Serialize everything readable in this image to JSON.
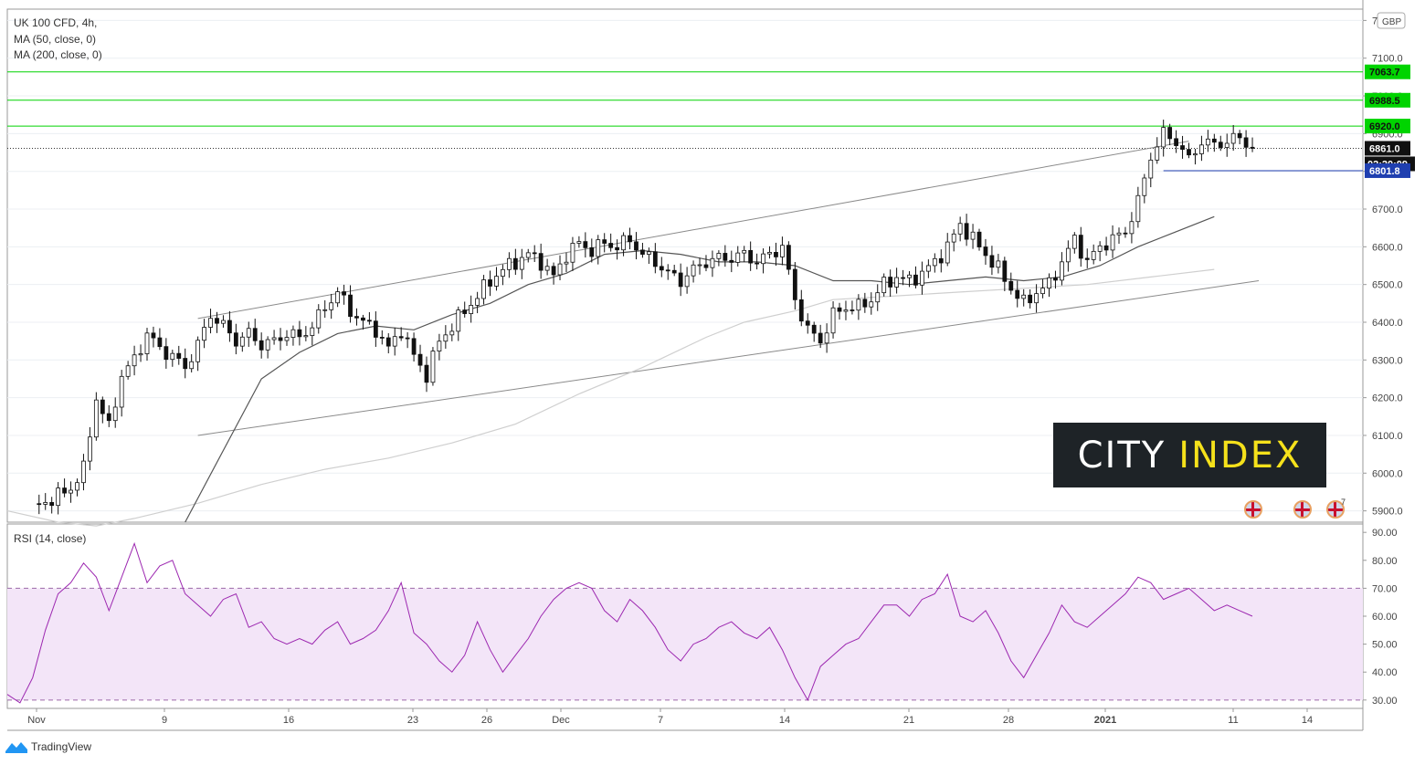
{
  "legend": {
    "symbol": "UK 100 CFD, 4h,",
    "ma50": "MA (50, close, 0)",
    "ma200": "MA (200, close, 0)",
    "rsi": "RSI (14, close)"
  },
  "currency_badge": "GBP",
  "price_ticks": [
    "7200.0",
    "7100.0",
    "7000.0",
    "6900.0",
    "6800.0",
    "6700.0",
    "6600.0",
    "6500.0",
    "6400.0",
    "6300.0",
    "6200.0",
    "6100.0",
    "6000.0",
    "5900.0"
  ],
  "rsi_ticks": [
    "90.00",
    "80.00",
    "70.00",
    "60.00",
    "50.00",
    "40.00",
    "30.00"
  ],
  "time_labels": [
    "Nov",
    "9",
    "16",
    "23",
    "26",
    "Dec",
    "7",
    "14",
    "21",
    "28",
    "2021",
    "11",
    "14"
  ],
  "markers": {
    "level_7063": "7063.7",
    "level_6988": "6988.5",
    "level_6920": "6920.0",
    "last_price": "6861.0",
    "countdown": "02:20:09",
    "level_6801": "6801.8"
  },
  "logo": {
    "city": "CITY",
    "index": "INDEX"
  },
  "flag_count": "7",
  "tradingview": "TradingView",
  "colors": {
    "resistance": "#00d400",
    "support_blue": "#1f3fb0",
    "rsi_line": "#9c27b0",
    "rsi_band": "#f3e5f8"
  },
  "chart_data": {
    "type": "candlestick",
    "title": "UK 100 CFD, 4h",
    "xlabel": "",
    "ylabel": "",
    "ylim": [
      5870,
      7230
    ],
    "rsi_ylim": [
      27,
      93
    ],
    "horizontal_levels": [
      7063.7,
      6988.5,
      6920.0,
      6801.8
    ],
    "last_price": 6861.0,
    "x_ticks": [
      "Nov",
      "9",
      "16",
      "23",
      "26",
      "Dec",
      "7",
      "14",
      "21",
      "28",
      "2021",
      "11",
      "14"
    ],
    "price_path": [
      [
        0,
        5820
      ],
      [
        2,
        5880
      ],
      [
        5,
        5915
      ],
      [
        8,
        5940
      ],
      [
        10,
        5960
      ],
      [
        12,
        6010
      ],
      [
        14,
        6200
      ],
      [
        16,
        6120
      ],
      [
        18,
        6260
      ],
      [
        20,
        6300
      ],
      [
        22,
        6370
      ],
      [
        24,
        6330
      ],
      [
        26,
        6310
      ],
      [
        28,
        6280
      ],
      [
        30,
        6340
      ],
      [
        32,
        6420
      ],
      [
        34,
        6390
      ],
      [
        36,
        6350
      ],
      [
        38,
        6370
      ],
      [
        40,
        6340
      ],
      [
        42,
        6350
      ],
      [
        44,
        6370
      ],
      [
        46,
        6360
      ],
      [
        48,
        6390
      ],
      [
        50,
        6440
      ],
      [
        52,
        6480
      ],
      [
        54,
        6430
      ],
      [
        56,
        6400
      ],
      [
        58,
        6380
      ],
      [
        60,
        6330
      ],
      [
        62,
        6380
      ],
      [
        64,
        6310
      ],
      [
        66,
        6260
      ],
      [
        68,
        6350
      ],
      [
        70,
        6390
      ],
      [
        72,
        6430
      ],
      [
        74,
        6470
      ],
      [
        76,
        6510
      ],
      [
        78,
        6540
      ],
      [
        80,
        6560
      ],
      [
        82,
        6580
      ],
      [
        84,
        6560
      ],
      [
        86,
        6520
      ],
      [
        88,
        6580
      ],
      [
        90,
        6610
      ],
      [
        92,
        6590
      ],
      [
        94,
        6610
      ],
      [
        96,
        6600
      ],
      [
        98,
        6620
      ],
      [
        100,
        6580
      ],
      [
        102,
        6560
      ],
      [
        104,
        6530
      ],
      [
        106,
        6510
      ],
      [
        108,
        6540
      ],
      [
        110,
        6560
      ],
      [
        112,
        6570
      ],
      [
        114,
        6570
      ],
      [
        116,
        6580
      ],
      [
        118,
        6560
      ],
      [
        120,
        6580
      ],
      [
        122,
        6600
      ],
      [
        124,
        6460
      ],
      [
        126,
        6380
      ],
      [
        128,
        6350
      ],
      [
        130,
        6420
      ],
      [
        132,
        6440
      ],
      [
        134,
        6440
      ],
      [
        136,
        6460
      ],
      [
        138,
        6500
      ],
      [
        140,
        6520
      ],
      [
        142,
        6510
      ],
      [
        144,
        6530
      ],
      [
        146,
        6560
      ],
      [
        148,
        6600
      ],
      [
        150,
        6660
      ],
      [
        152,
        6620
      ],
      [
        154,
        6580
      ],
      [
        156,
        6540
      ],
      [
        158,
        6490
      ],
      [
        160,
        6450
      ],
      [
        162,
        6480
      ],
      [
        164,
        6500
      ],
      [
        166,
        6560
      ],
      [
        168,
        6620
      ],
      [
        170,
        6560
      ],
      [
        172,
        6600
      ],
      [
        174,
        6620
      ],
      [
        176,
        6640
      ],
      [
        178,
        6720
      ],
      [
        180,
        6840
      ],
      [
        182,
        6900
      ],
      [
        184,
        6880
      ],
      [
        186,
        6830
      ],
      [
        188,
        6880
      ],
      [
        190,
        6870
      ],
      [
        192,
        6880
      ],
      [
        194,
        6890
      ],
      [
        196,
        6861
      ]
    ],
    "ma50_path": [
      [
        28,
        5870
      ],
      [
        34,
        6060
      ],
      [
        40,
        6250
      ],
      [
        46,
        6320
      ],
      [
        52,
        6370
      ],
      [
        58,
        6390
      ],
      [
        64,
        6380
      ],
      [
        70,
        6420
      ],
      [
        76,
        6450
      ],
      [
        82,
        6500
      ],
      [
        88,
        6530
      ],
      [
        94,
        6580
      ],
      [
        100,
        6590
      ],
      [
        106,
        6580
      ],
      [
        112,
        6560
      ],
      [
        118,
        6560
      ],
      [
        124,
        6550
      ],
      [
        130,
        6510
      ],
      [
        136,
        6510
      ],
      [
        142,
        6500
      ],
      [
        148,
        6510
      ],
      [
        154,
        6520
      ],
      [
        160,
        6510
      ],
      [
        166,
        6520
      ],
      [
        172,
        6550
      ],
      [
        178,
        6600
      ],
      [
        184,
        6640
      ],
      [
        190,
        6680
      ]
    ],
    "ma200_path": [
      [
        0,
        5900
      ],
      [
        8,
        5870
      ],
      [
        14,
        5860
      ],
      [
        20,
        5880
      ],
      [
        30,
        5920
      ],
      [
        40,
        5970
      ],
      [
        50,
        6010
      ],
      [
        60,
        6040
      ],
      [
        70,
        6080
      ],
      [
        80,
        6130
      ],
      [
        90,
        6210
      ],
      [
        100,
        6280
      ],
      [
        110,
        6360
      ],
      [
        116,
        6400
      ],
      [
        124,
        6430
      ],
      [
        130,
        6460
      ],
      [
        140,
        6470
      ],
      [
        150,
        6480
      ],
      [
        160,
        6490
      ],
      [
        170,
        6500
      ],
      [
        180,
        6520
      ],
      [
        190,
        6540
      ]
    ],
    "trend_lines": [
      [
        [
          30,
          6100
        ],
        [
          197,
          6510
        ]
      ],
      [
        [
          30,
          6410
        ],
        [
          186,
          6880
        ]
      ]
    ],
    "rsi": [
      [
        0,
        32
      ],
      [
        2,
        29
      ],
      [
        4,
        38
      ],
      [
        6,
        55
      ],
      [
        8,
        68
      ],
      [
        10,
        72
      ],
      [
        12,
        79
      ],
      [
        14,
        74
      ],
      [
        16,
        62
      ],
      [
        18,
        74
      ],
      [
        20,
        86
      ],
      [
        22,
        72
      ],
      [
        24,
        78
      ],
      [
        26,
        80
      ],
      [
        28,
        68
      ],
      [
        30,
        64
      ],
      [
        32,
        60
      ],
      [
        34,
        66
      ],
      [
        36,
        68
      ],
      [
        38,
        56
      ],
      [
        40,
        58
      ],
      [
        42,
        52
      ],
      [
        44,
        50
      ],
      [
        46,
        52
      ],
      [
        48,
        50
      ],
      [
        50,
        55
      ],
      [
        52,
        58
      ],
      [
        54,
        50
      ],
      [
        56,
        52
      ],
      [
        58,
        55
      ],
      [
        60,
        62
      ],
      [
        62,
        72
      ],
      [
        64,
        54
      ],
      [
        66,
        50
      ],
      [
        68,
        44
      ],
      [
        70,
        40
      ],
      [
        72,
        46
      ],
      [
        74,
        58
      ],
      [
        76,
        48
      ],
      [
        78,
        40
      ],
      [
        80,
        46
      ],
      [
        82,
        52
      ],
      [
        84,
        60
      ],
      [
        86,
        66
      ],
      [
        88,
        70
      ],
      [
        90,
        72
      ],
      [
        92,
        70
      ],
      [
        94,
        62
      ],
      [
        96,
        58
      ],
      [
        98,
        66
      ],
      [
        100,
        62
      ],
      [
        102,
        56
      ],
      [
        104,
        48
      ],
      [
        106,
        44
      ],
      [
        108,
        50
      ],
      [
        110,
        52
      ],
      [
        112,
        56
      ],
      [
        114,
        58
      ],
      [
        116,
        54
      ],
      [
        118,
        52
      ],
      [
        120,
        56
      ],
      [
        122,
        48
      ],
      [
        124,
        38
      ],
      [
        126,
        30
      ],
      [
        128,
        42
      ],
      [
        130,
        46
      ],
      [
        132,
        50
      ],
      [
        134,
        52
      ],
      [
        136,
        58
      ],
      [
        138,
        64
      ],
      [
        140,
        64
      ],
      [
        142,
        60
      ],
      [
        144,
        66
      ],
      [
        146,
        68
      ],
      [
        148,
        75
      ],
      [
        150,
        60
      ],
      [
        152,
        58
      ],
      [
        154,
        62
      ],
      [
        156,
        54
      ],
      [
        158,
        44
      ],
      [
        160,
        38
      ],
      [
        162,
        46
      ],
      [
        164,
        54
      ],
      [
        166,
        64
      ],
      [
        168,
        58
      ],
      [
        170,
        56
      ],
      [
        172,
        60
      ],
      [
        174,
        64
      ],
      [
        176,
        68
      ],
      [
        178,
        74
      ],
      [
        180,
        72
      ],
      [
        182,
        66
      ],
      [
        184,
        68
      ],
      [
        186,
        70
      ],
      [
        188,
        66
      ],
      [
        190,
        62
      ],
      [
        192,
        64
      ],
      [
        194,
        62
      ],
      [
        196,
        60
      ]
    ]
  }
}
